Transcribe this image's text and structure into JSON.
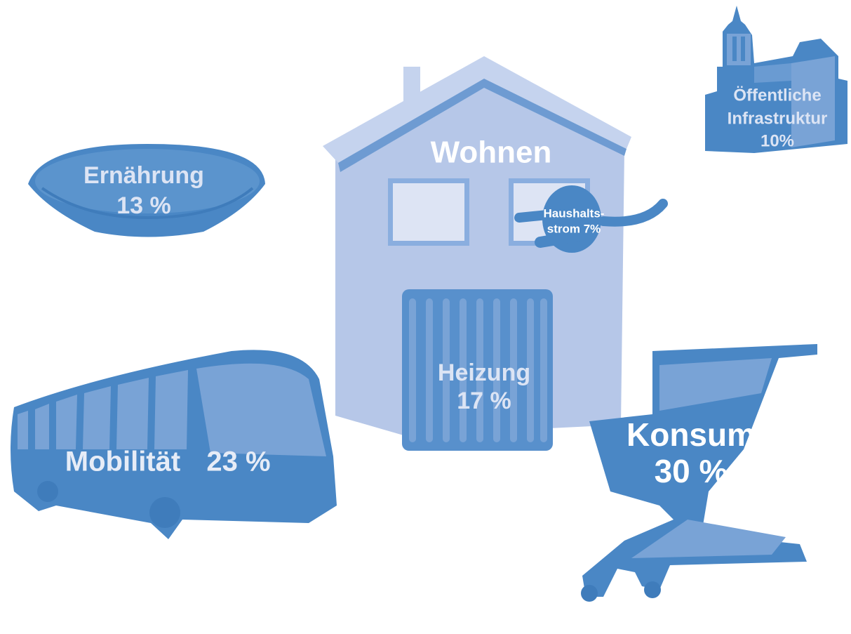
{
  "wohnen": {
    "title": "Wohnen"
  },
  "items": [
    {
      "lines": [
        "Ernährung",
        "13 %"
      ]
    },
    {
      "lines": [
        "Öffentliche",
        "Infrastruktur",
        "10%"
      ]
    },
    {
      "lines": [
        "Haushalts-",
        "strom 7%"
      ]
    },
    {
      "lines": [
        "Heizung",
        "17 %"
      ]
    },
    {
      "lines": [
        "Mobilität",
        "23 %"
      ]
    },
    {
      "lines": [
        "Konsum",
        "30 %"
      ]
    }
  ]
}
